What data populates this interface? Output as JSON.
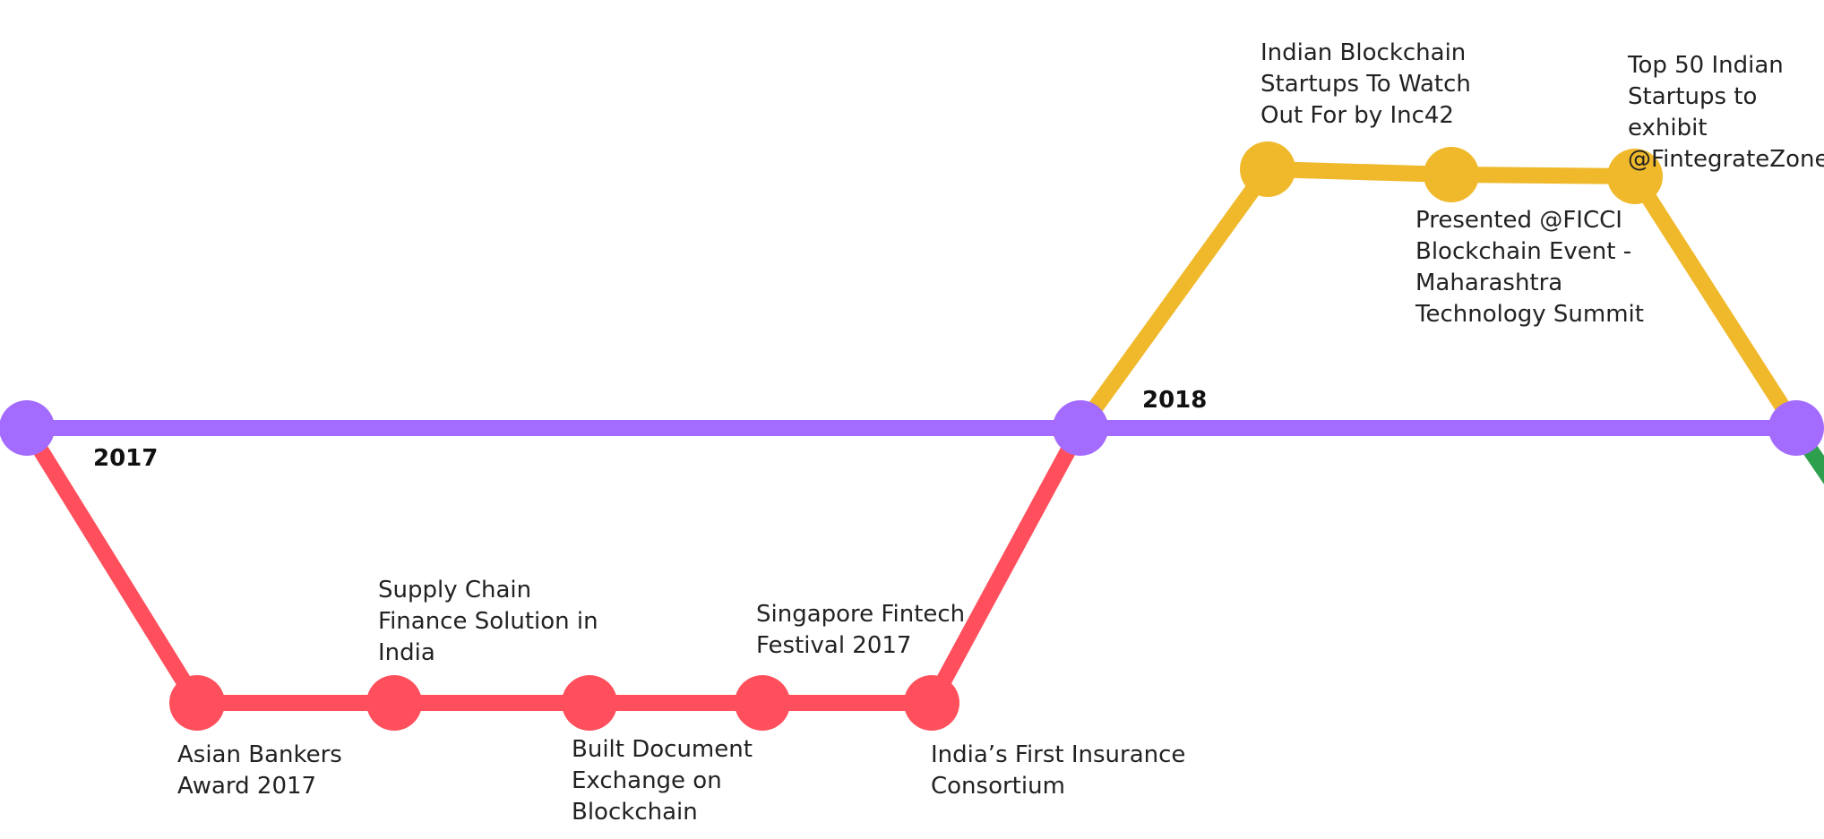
{
  "colors": {
    "main": "#a46bff",
    "y2017": "#ff4f5c",
    "y2018": "#f0b92b",
    "next": "#2e9f4d",
    "text": "#222222"
  },
  "years": {
    "y2017": "2017",
    "y2018": "2018"
  },
  "events": [
    "Asian Bankers\nAward 2017",
    " Supply Chain\nFinance Solution in\nIndia",
    "Built Document\nExchange on\nBlockchain",
    "Singapore Fintech\nFestival 2017",
    "India’s First Insurance\nConsortium",
    "Indian Blockchain\nStartups To Watch\nOut For by Inc42",
    "Presented @FICCI\nBlockchain Event -\nMaharashtra\nTechnology Summit",
    "Top 50 Indian\nStartups to exhibit\n@FintegrateZone"
  ]
}
